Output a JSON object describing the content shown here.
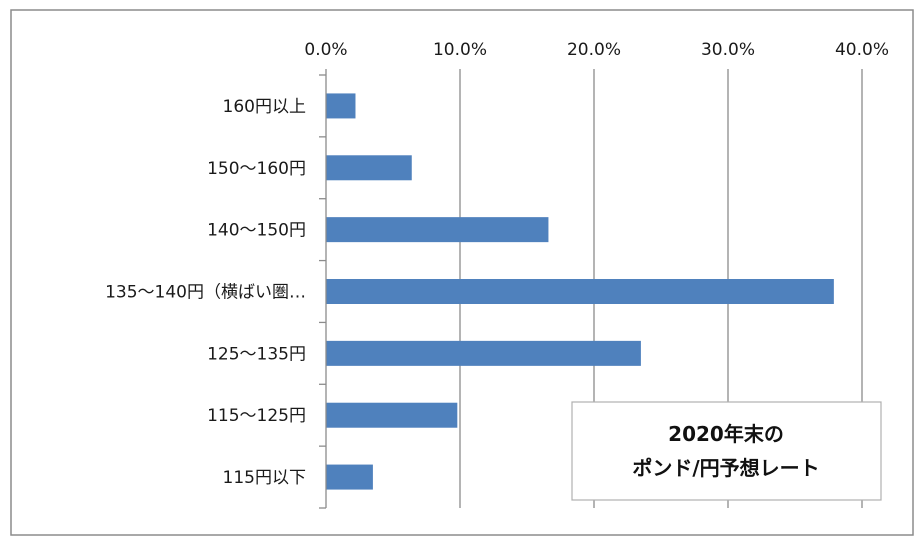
{
  "chart_data": {
    "type": "bar",
    "orientation": "horizontal",
    "title_lines": [
      "2020年末の",
      "ポンド/円予想レート"
    ],
    "categories": [
      "160円以上",
      "150～160円",
      "140～150円",
      "135～140円（横ばい圏…",
      "125～135円",
      "115～125円",
      "115円以下"
    ],
    "values": [
      2.2,
      6.4,
      16.6,
      37.9,
      23.5,
      9.8,
      3.5
    ],
    "xlim": [
      0,
      40
    ],
    "x_ticks": [
      0,
      10,
      20,
      30,
      40
    ],
    "x_tick_labels": [
      "0.0%",
      "10.0%",
      "20.0%",
      "30.0%",
      "40.0%"
    ],
    "x_axis_position": "top",
    "grid": true,
    "bar_color": "#4f81bd",
    "grid_color": "#8c8c8c"
  }
}
